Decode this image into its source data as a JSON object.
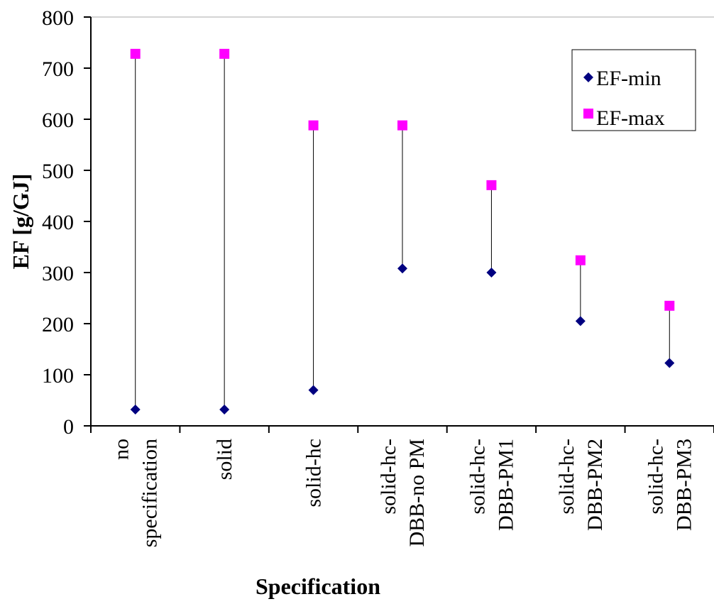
{
  "chart_data": {
    "type": "scatter",
    "categories": [
      [
        "no",
        "specification"
      ],
      [
        "solid"
      ],
      [
        "solid-hc"
      ],
      [
        "solid-hc-",
        "DBB-no PM"
      ],
      [
        "solid-hc-",
        "DBB-PM1"
      ],
      [
        "solid-hc-",
        "DBB-PM2"
      ],
      [
        "solid-hc-",
        "DBB-PM3"
      ]
    ],
    "series": [
      {
        "name": "EF-min",
        "values": [
          32,
          32,
          70,
          308,
          300,
          205,
          123
        ],
        "color": "#000080",
        "marker": "diamond"
      },
      {
        "name": "EF-max",
        "values": [
          728,
          728,
          588,
          588,
          471,
          324,
          235
        ],
        "color": "#ff00ff",
        "marker": "square"
      }
    ],
    "xlabel": "Specification",
    "ylabel": "EF [g/GJ]",
    "ylim": [
      0,
      800
    ],
    "yticks": [
      0,
      100,
      200,
      300,
      400,
      500,
      600,
      700,
      800
    ],
    "range_lines": true,
    "legend_position": "top-right",
    "grid": false
  }
}
